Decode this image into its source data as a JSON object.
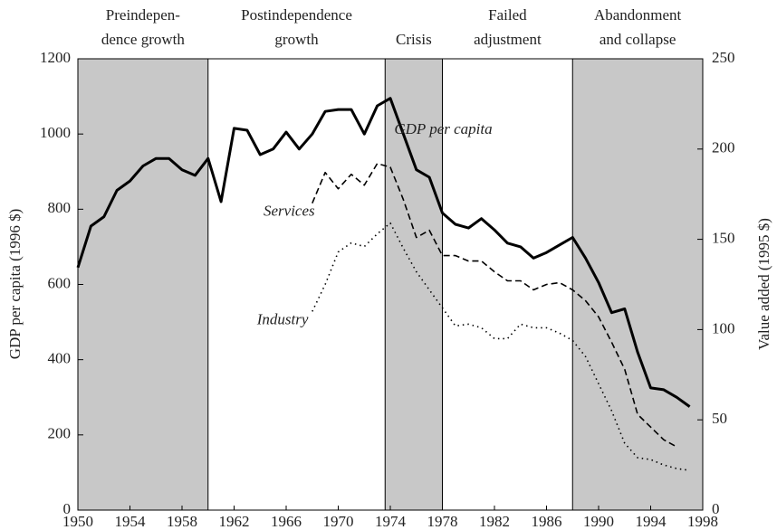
{
  "chart_data": {
    "type": "line",
    "xlabel": null,
    "ylabel": "GDP per capita (1996 $)",
    "y2label": "Value added (1995 $)",
    "xlim": [
      1950,
      1998
    ],
    "xticks": [
      1950,
      1954,
      1958,
      1962,
      1966,
      1970,
      1974,
      1978,
      1982,
      1986,
      1990,
      1994,
      1998
    ],
    "ylim": [
      0,
      1200
    ],
    "yticks": [
      0,
      200,
      400,
      600,
      800,
      1000,
      1200
    ],
    "y2lim": [
      0,
      250
    ],
    "y2ticks": [
      0,
      50,
      100,
      150,
      200,
      250
    ],
    "shade_color": "#c8c8c8",
    "periods": [
      {
        "label": [
          "Preindepen-",
          "dence growth"
        ],
        "start": 1950,
        "end": 1960,
        "shaded": true
      },
      {
        "label": [
          "Postindependence",
          "growth"
        ],
        "start": 1960,
        "end": 1973.6,
        "shaded": false
      },
      {
        "label": [
          "Crisis"
        ],
        "start": 1973.6,
        "end": 1978,
        "shaded": true
      },
      {
        "label": [
          "Failed",
          "adjustment"
        ],
        "start": 1978,
        "end": 1988,
        "shaded": false
      },
      {
        "label": [
          "Abandonment",
          "and collapse"
        ],
        "start": 1988,
        "end": 1998,
        "shaded": true
      }
    ],
    "series": [
      {
        "name": "GDP per capita",
        "color": "#000000",
        "style": "solid",
        "axis": "y",
        "x": [
          1950,
          1951,
          1952,
          1953,
          1954,
          1955,
          1956,
          1957,
          1958,
          1959,
          1960,
          1961,
          1962,
          1963,
          1964,
          1965,
          1966,
          1967,
          1968,
          1969,
          1970,
          1971,
          1972,
          1973,
          1974,
          1975,
          1976,
          1977,
          1978,
          1979,
          1980,
          1981,
          1982,
          1983,
          1984,
          1985,
          1986,
          1987,
          1988,
          1989,
          1990,
          1991,
          1992,
          1993,
          1994,
          1995,
          1996,
          1997
        ],
        "values": [
          645,
          755,
          780,
          850,
          875,
          915,
          935,
          935,
          905,
          890,
          935,
          820,
          1015,
          1010,
          945,
          960,
          1005,
          960,
          1000,
          1060,
          1065,
          1065,
          1000,
          1075,
          1095,
          1000,
          905,
          885,
          790,
          760,
          750,
          775,
          745,
          710,
          700,
          670,
          685,
          705,
          725,
          670,
          605,
          525,
          535,
          420,
          325,
          320,
          300,
          275
        ]
      },
      {
        "name": "Services",
        "color": "#000000",
        "style": "dashed",
        "axis": "y2",
        "x": [
          1968,
          1969,
          1970,
          1971,
          1972,
          1973,
          1974,
          1975,
          1976,
          1977,
          1978,
          1979,
          1980,
          1981,
          1982,
          1983,
          1984,
          1985,
          1986,
          1987,
          1988,
          1989,
          1990,
          1991,
          1992,
          1993,
          1994,
          1995,
          1996
        ],
        "values": [
          170,
          187,
          178,
          186,
          180,
          192,
          190,
          172,
          151,
          155,
          141,
          141,
          138,
          138,
          132,
          127,
          127,
          122,
          125,
          126,
          122,
          116,
          107,
          93,
          78,
          53,
          46,
          39,
          35
        ]
      },
      {
        "name": "Industry",
        "color": "#000000",
        "style": "dotted",
        "axis": "y2",
        "x": [
          1968,
          1969,
          1970,
          1971,
          1972,
          1973,
          1974,
          1975,
          1976,
          1977,
          1978,
          1979,
          1980,
          1981,
          1982,
          1983,
          1984,
          1985,
          1986,
          1987,
          1988,
          1989,
          1990,
          1991,
          1992,
          1993,
          1994,
          1995,
          1996,
          1997
        ],
        "values": [
          110,
          125,
          143,
          148,
          146,
          153,
          159,
          145,
          132,
          122,
          112,
          102,
          103,
          101,
          95,
          95,
          103,
          101,
          101,
          98,
          94,
          85,
          70,
          55,
          37,
          29,
          28,
          25,
          23,
          22
        ]
      }
    ]
  }
}
